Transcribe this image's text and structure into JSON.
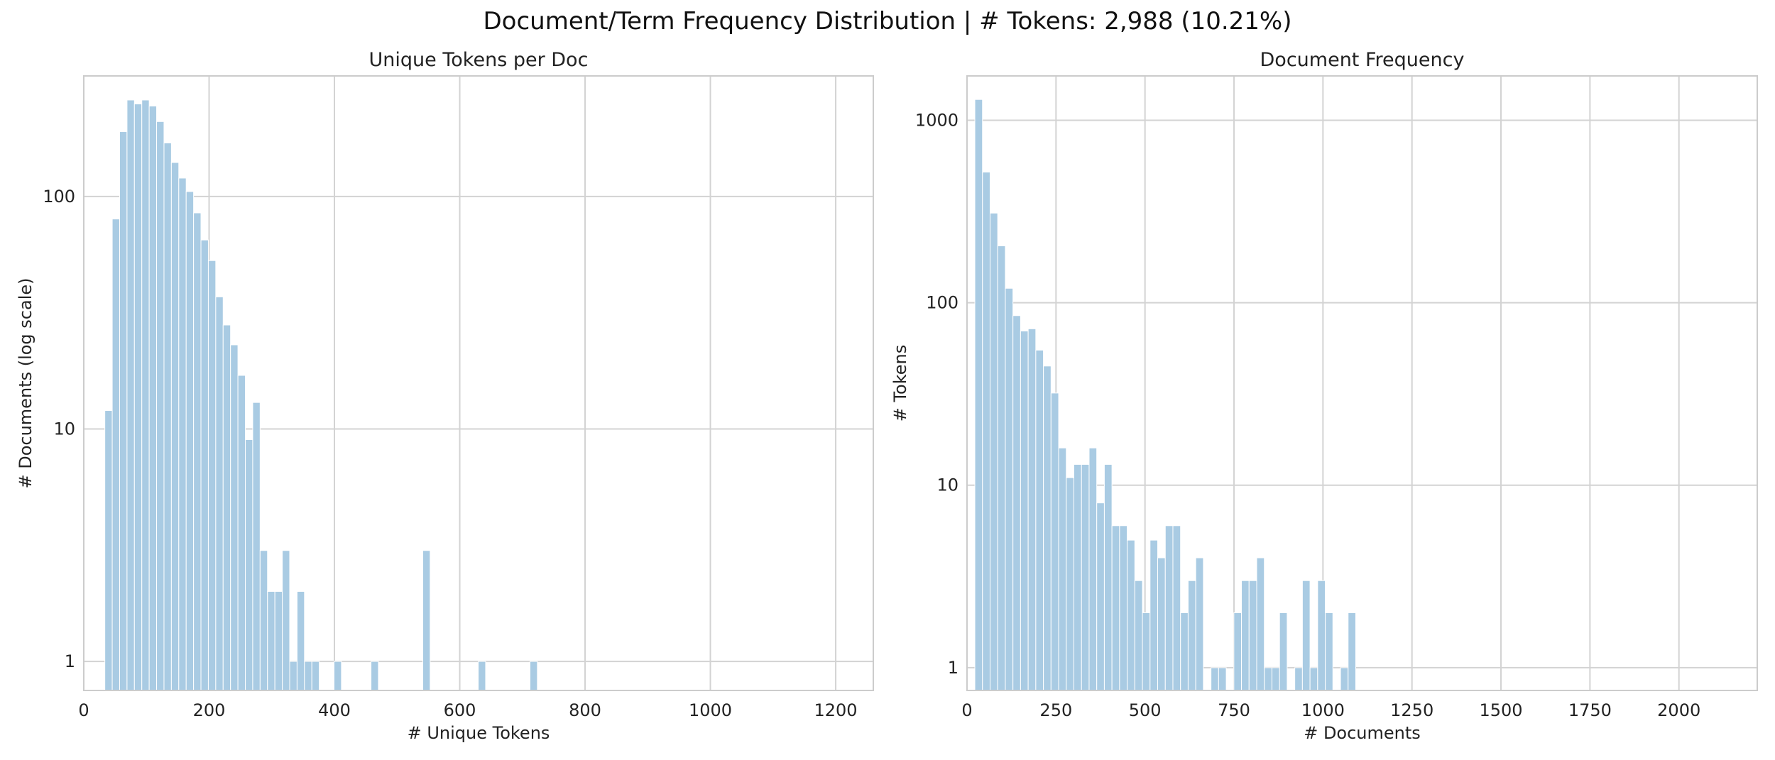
{
  "figure": {
    "suptitle": "Document/Term Frequency Distribution | # Tokens: 2,988 (10.21%)"
  },
  "colors": {
    "bar": "#a9cbe3",
    "grid": "#d3d3d3",
    "spine": "#cccccc"
  },
  "chart_data": [
    {
      "type": "bar",
      "title": "Unique Tokens per Doc",
      "xlabel": "# Unique Tokens",
      "ylabel": "# Documents (log scale)",
      "yscale": "log",
      "xlim": [
        0,
        1260
      ],
      "ylim": [
        0.75,
        330
      ],
      "xticks": [
        0,
        200,
        400,
        600,
        800,
        1000,
        1200
      ],
      "xtick_labels": [
        "0",
        "200",
        "400",
        "600",
        "800",
        "1000",
        "1200"
      ],
      "yticks": [
        1,
        10,
        100
      ],
      "ytick_labels": [
        "1",
        "10",
        "100"
      ],
      "grid": true,
      "bin_width": 11.8,
      "bins_start": [
        33.6,
        45.4,
        57.2,
        69,
        80.8,
        92.6,
        104.4,
        116.2,
        128,
        139.8,
        151.6,
        163.4,
        175.2,
        187,
        198.8,
        210.6,
        222.4,
        234.2,
        246,
        257.8,
        269.6,
        281.4,
        293.2,
        305,
        316.8,
        328.6,
        340.4,
        352.2,
        364,
        399.4,
        458.4,
        541,
        629.5,
        712.1
      ],
      "values": [
        12,
        80,
        190,
        260,
        250,
        260,
        245,
        210,
        170,
        140,
        120,
        105,
        85,
        65,
        53,
        37,
        28,
        23,
        17,
        9,
        13,
        3,
        2,
        2,
        3,
        1,
        2,
        1,
        1,
        1,
        1,
        3,
        1,
        1
      ]
    },
    {
      "type": "bar",
      "title": "Document Frequency",
      "xlabel": "# Documents",
      "ylabel": "# Tokens",
      "yscale": "log",
      "xlim": [
        0,
        2220
      ],
      "ylim": [
        0.75,
        1750
      ],
      "xticks": [
        0,
        250,
        500,
        750,
        1000,
        1250,
        1500,
        1750,
        2000
      ],
      "xtick_labels": [
        "0",
        "250",
        "500",
        "750",
        "1000",
        "1250",
        "1500",
        "1750",
        "2000"
      ],
      "yticks": [
        1,
        10,
        100,
        1000
      ],
      "ytick_labels": [
        "1",
        "10",
        "100",
        "1000"
      ],
      "grid": true,
      "bin_width": 21.4,
      "bins_start": [
        22,
        43.4,
        64.8,
        86.2,
        107.6,
        129,
        150.4,
        171.8,
        193.2,
        214.6,
        236,
        257.4,
        278.8,
        300.2,
        321.6,
        343,
        364.4,
        385.8,
        407.2,
        428.6,
        450,
        471.4,
        492.8,
        514.2,
        535.6,
        557,
        578.4,
        599.8,
        621.2,
        642.6,
        685.4,
        706.8,
        749.6,
        771,
        792.4,
        813.8,
        835.2,
        856.6,
        878,
        920.8,
        942.2,
        963.6,
        985,
        1006.4,
        1049.2,
        1070.6
      ],
      "values": [
        1300,
        520,
        310,
        205,
        120,
        85,
        70,
        72,
        55,
        45,
        32,
        16,
        11,
        13,
        13,
        16,
        8,
        13,
        6,
        6,
        5,
        3,
        2,
        5,
        4,
        6,
        6,
        2,
        3,
        4,
        1,
        1,
        2,
        3,
        3,
        4,
        1,
        1,
        2,
        1,
        3,
        1,
        3,
        2,
        1,
        2
      ]
    }
  ]
}
